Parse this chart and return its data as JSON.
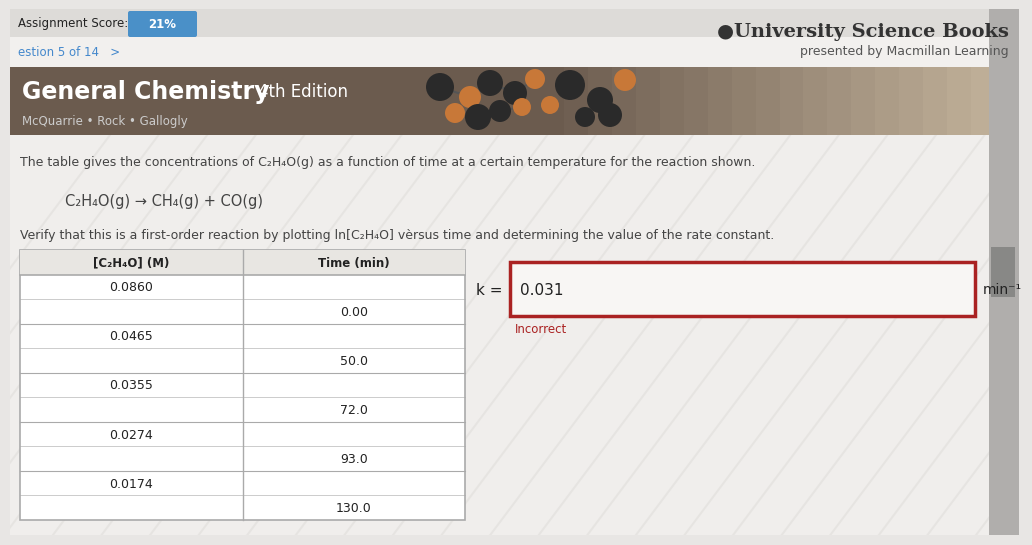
{
  "assignment_score_label": "Assignment Score:",
  "assignment_score_value": "21%",
  "question_label": "estion 5 of 14   >",
  "publisher_title": "●University Science Books",
  "publisher_subtitle": "presented by Macmillan Learning",
  "book_title": "General Chemistry",
  "book_edition": "4th Edition",
  "book_authors": "McQuarrie • Rock • Gallogly",
  "problem_text": "The table gives the concentrations of C₂H₄O(g) as a function of time at a certain temperature for the reaction shown.",
  "reaction": "C₂H₄O(g) → CH₄(g) + CO(g)",
  "verify_text": "Verify that this is a first-order reaction by plotting ln[C₂H₄O] vèrsus time and determining the value of the rate constant.",
  "table_col1_header": "[C₂H₄O] (M)",
  "table_col2_header": "Time (min)",
  "table_data": [
    [
      0.086,
      0.0
    ],
    [
      0.0465,
      50.0
    ],
    [
      0.0355,
      72.0
    ],
    [
      0.0274,
      93.0
    ],
    [
      0.0174,
      130.0
    ]
  ],
  "k_label": "k =",
  "k_value": "0.031",
  "k_units": "min⁻¹",
  "incorrect_label": "Incorrect",
  "page_bg": "#e8e6e4",
  "top_bar_bg": "#f0eeec",
  "header_banner_left": "#7a6a5a",
  "header_banner_right": "#b0a898",
  "score_box_color": "#4a90c8",
  "input_box_border": "#aa2222",
  "input_box_bg": "#f8f6f4",
  "incorrect_color": "#aa2222",
  "table_border_color": "#aaaaaa",
  "table_header_bg": "#e8e6e2",
  "white": "#ffffff",
  "black": "#222222",
  "dark_gray": "#444444",
  "mid_gray": "#888888",
  "light_text": "#cccccc",
  "question_link_color": "#4488cc",
  "publisher_title_color": "#333333",
  "publisher_subtitle_color": "#555555"
}
